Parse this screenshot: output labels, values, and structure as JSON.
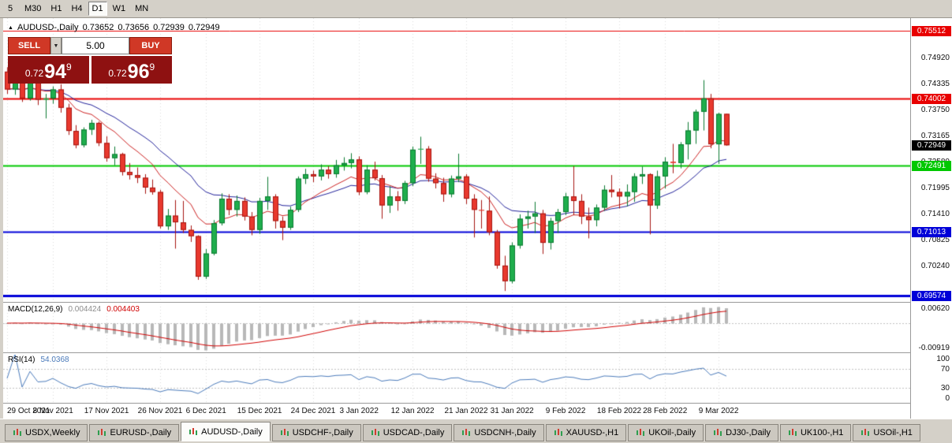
{
  "toolbar": {
    "timeframes": [
      {
        "label": "5",
        "active": false
      },
      {
        "label": "M30",
        "active": false
      },
      {
        "label": "H1",
        "active": false
      },
      {
        "label": "H4",
        "active": false
      },
      {
        "label": "D1",
        "active": true
      },
      {
        "label": "W1",
        "active": false
      },
      {
        "label": "MN",
        "active": false
      }
    ]
  },
  "chart_header": {
    "title": "AUDUSD-,Daily",
    "open": "0.73652",
    "high": "0.73656",
    "low": "0.72939",
    "close": "0.72949"
  },
  "one_click": {
    "sell_label": "SELL",
    "buy_label": "BUY",
    "volume": "5.00",
    "bid_prefix": "0.72",
    "bid_big": "94",
    "bid_sup": "9",
    "ask_prefix": "0.72",
    "ask_big": "96",
    "ask_sup": "9"
  },
  "chart_data": {
    "type": "candlestick",
    "symbol": "AUDUSD-",
    "timeframe": "Daily",
    "price_axis_range": {
      "min": 0.69435,
      "max": 0.758
    },
    "price_ticks": [
      {
        "label": "0.74920",
        "value": 0.7492
      },
      {
        "label": "0.74335",
        "value": 0.74335
      },
      {
        "label": "0.73750",
        "value": 0.7375
      },
      {
        "label": "0.73165",
        "value": 0.73165
      },
      {
        "label": "0.72580",
        "value": 0.7258
      },
      {
        "label": "0.71995",
        "value": 0.71995
      },
      {
        "label": "0.71410",
        "value": 0.7141
      },
      {
        "label": "0.70825",
        "value": 0.70825
      },
      {
        "label": "0.70240",
        "value": 0.7024
      }
    ],
    "horizontal_lines": [
      {
        "label": "0.75512",
        "price": 0.75512,
        "color": "#e80000",
        "width": 1
      },
      {
        "label": "0.74002",
        "price": 0.74002,
        "color": "#e80000",
        "width": 2
      },
      {
        "label": "0.72491",
        "price": 0.72491,
        "color": "#00c800",
        "width": 2
      },
      {
        "label": "0.71013",
        "price": 0.71013,
        "color": "#0000d8",
        "width": 2
      },
      {
        "label": "0.69574",
        "price": 0.69574,
        "color": "#0000d8",
        "width": 3
      }
    ],
    "current_price": {
      "label": "0.72949",
      "value": 0.72949,
      "color": "#000000"
    },
    "date_ticks": [
      {
        "index": 0,
        "label": "29 Oct 2021"
      },
      {
        "index": 6,
        "label": "8 Nov 2021"
      },
      {
        "index": 13,
        "label": "17 Nov 2021"
      },
      {
        "index": 20,
        "label": "26 Nov 2021"
      },
      {
        "index": 26,
        "label": "6 Dec 2021"
      },
      {
        "index": 33,
        "label": "15 Dec 2021"
      },
      {
        "index": 40,
        "label": "24 Dec 2021"
      },
      {
        "index": 46,
        "label": "3 Jan 2022"
      },
      {
        "index": 53,
        "label": "12 Jan 2022"
      },
      {
        "index": 60,
        "label": "21 Jan 2022"
      },
      {
        "index": 66,
        "label": "31 Jan 2022"
      },
      {
        "index": 73,
        "label": "9 Feb 2022"
      },
      {
        "index": 80,
        "label": "18 Feb 2022"
      },
      {
        "index": 86,
        "label": "28 Feb 2022"
      },
      {
        "index": 93,
        "label": "9 Mar 2022"
      }
    ],
    "moving_averages": [
      {
        "method": "ema",
        "period": 10,
        "color": "#cc2222"
      },
      {
        "method": "ema",
        "period": 20,
        "color": "#22229a"
      }
    ],
    "dates": [
      "2021-10-29",
      "2021-11-01",
      "2021-11-02",
      "2021-11-03",
      "2021-11-04",
      "2021-11-05",
      "2021-11-08",
      "2021-11-09",
      "2021-11-10",
      "2021-11-11",
      "2021-11-12",
      "2021-11-15",
      "2021-11-16",
      "2021-11-17",
      "2021-11-18",
      "2021-11-19",
      "2021-11-22",
      "2021-11-23",
      "2021-11-24",
      "2021-11-25",
      "2021-11-26",
      "2021-11-29",
      "2021-11-30",
      "2021-12-01",
      "2021-12-02",
      "2021-12-03",
      "2021-12-06",
      "2021-12-07",
      "2021-12-08",
      "2021-12-09",
      "2021-12-10",
      "2021-12-13",
      "2021-12-14",
      "2021-12-15",
      "2021-12-16",
      "2021-12-17",
      "2021-12-20",
      "2021-12-21",
      "2021-12-22",
      "2021-12-23",
      "2021-12-24",
      "2021-12-27",
      "2021-12-28",
      "2021-12-29",
      "2021-12-30",
      "2021-12-31",
      "2022-01-03",
      "2022-01-04",
      "2022-01-05",
      "2022-01-06",
      "2022-01-07",
      "2022-01-10",
      "2022-01-11",
      "2022-01-12",
      "2022-01-13",
      "2022-01-14",
      "2022-01-17",
      "2022-01-18",
      "2022-01-19",
      "2022-01-20",
      "2022-01-21",
      "2022-01-24",
      "2022-01-25",
      "2022-01-26",
      "2022-01-27",
      "2022-01-28",
      "2022-01-31",
      "2022-02-01",
      "2022-02-02",
      "2022-02-03",
      "2022-02-04",
      "2022-02-07",
      "2022-02-08",
      "2022-02-09",
      "2022-02-10",
      "2022-02-11",
      "2022-02-14",
      "2022-02-15",
      "2022-02-16",
      "2022-02-17",
      "2022-02-18",
      "2022-02-21",
      "2022-02-22",
      "2022-02-23",
      "2022-02-24",
      "2022-02-25",
      "2022-02-28",
      "2022-03-01",
      "2022-03-02",
      "2022-03-03",
      "2022-03-04",
      "2022-03-07",
      "2022-03-08",
      "2022-03-09",
      "2022-03-10"
    ],
    "ohlc": [
      [
        0.746,
        0.747,
        0.741,
        0.742
      ],
      [
        0.742,
        0.7445,
        0.7408,
        0.7438
      ],
      [
        0.7438,
        0.7448,
        0.7392,
        0.74
      ],
      [
        0.74,
        0.7462,
        0.7395,
        0.745
      ],
      [
        0.745,
        0.7455,
        0.7385,
        0.7397
      ],
      [
        0.7397,
        0.741,
        0.7355,
        0.74
      ],
      [
        0.74,
        0.7427,
        0.7388,
        0.742
      ],
      [
        0.742,
        0.7432,
        0.7368,
        0.7379
      ],
      [
        0.7379,
        0.7388,
        0.7318,
        0.7327
      ],
      [
        0.7327,
        0.734,
        0.7288,
        0.7295
      ],
      [
        0.7295,
        0.7335,
        0.729,
        0.733
      ],
      [
        0.733,
        0.7352,
        0.7318,
        0.7345
      ],
      [
        0.7345,
        0.7348,
        0.7293,
        0.73
      ],
      [
        0.73,
        0.7315,
        0.7258,
        0.7266
      ],
      [
        0.7266,
        0.7292,
        0.725,
        0.7275
      ],
      [
        0.7275,
        0.7278,
        0.7227,
        0.7235
      ],
      [
        0.7235,
        0.7255,
        0.7218,
        0.7228
      ],
      [
        0.7228,
        0.7245,
        0.721,
        0.7222
      ],
      [
        0.7222,
        0.723,
        0.7186,
        0.72
      ],
      [
        0.72,
        0.7218,
        0.7184,
        0.719
      ],
      [
        0.719,
        0.7195,
        0.7108,
        0.7113
      ],
      [
        0.7113,
        0.7152,
        0.7105,
        0.7137
      ],
      [
        0.7137,
        0.7172,
        0.7063,
        0.7122
      ],
      [
        0.7122,
        0.717,
        0.7098,
        0.7105
      ],
      [
        0.7105,
        0.7115,
        0.7078,
        0.7091
      ],
      [
        0.7091,
        0.7093,
        0.6993,
        0.7
      ],
      [
        0.7,
        0.7062,
        0.6995,
        0.7052
      ],
      [
        0.7052,
        0.7127,
        0.7048,
        0.712
      ],
      [
        0.712,
        0.7187,
        0.7115,
        0.7175
      ],
      [
        0.7175,
        0.7185,
        0.7138,
        0.715
      ],
      [
        0.715,
        0.7182,
        0.7135,
        0.717
      ],
      [
        0.717,
        0.7178,
        0.7126,
        0.7135
      ],
      [
        0.7135,
        0.7145,
        0.7093,
        0.7105
      ],
      [
        0.7105,
        0.7177,
        0.7096,
        0.717
      ],
      [
        0.717,
        0.7224,
        0.715,
        0.718
      ],
      [
        0.718,
        0.7185,
        0.7108,
        0.7125
      ],
      [
        0.7125,
        0.7135,
        0.7082,
        0.711
      ],
      [
        0.711,
        0.7157,
        0.7105,
        0.715
      ],
      [
        0.715,
        0.7225,
        0.7145,
        0.722
      ],
      [
        0.722,
        0.7242,
        0.7208,
        0.723
      ],
      [
        0.723,
        0.7238,
        0.7212,
        0.7225
      ],
      [
        0.7225,
        0.7252,
        0.7216,
        0.724
      ],
      [
        0.724,
        0.7248,
        0.722,
        0.723
      ],
      [
        0.723,
        0.7262,
        0.7222,
        0.725
      ],
      [
        0.725,
        0.7268,
        0.7238,
        0.7255
      ],
      [
        0.7255,
        0.7277,
        0.7243,
        0.7263
      ],
      [
        0.7263,
        0.727,
        0.7183,
        0.719
      ],
      [
        0.719,
        0.725,
        0.7185,
        0.724
      ],
      [
        0.724,
        0.7258,
        0.7216,
        0.7221
      ],
      [
        0.7221,
        0.7228,
        0.713,
        0.716
      ],
      [
        0.716,
        0.7203,
        0.7143,
        0.718
      ],
      [
        0.718,
        0.7192,
        0.7148,
        0.717
      ],
      [
        0.717,
        0.7215,
        0.7163,
        0.721
      ],
      [
        0.721,
        0.7292,
        0.7203,
        0.7285
      ],
      [
        0.7285,
        0.7314,
        0.7253,
        0.7287
      ],
      [
        0.7287,
        0.7293,
        0.7213,
        0.722
      ],
      [
        0.722,
        0.7232,
        0.7198,
        0.721
      ],
      [
        0.721,
        0.7222,
        0.7168,
        0.7185
      ],
      [
        0.7185,
        0.7227,
        0.7178,
        0.722
      ],
      [
        0.722,
        0.7276,
        0.7212,
        0.7225
      ],
      [
        0.7225,
        0.723,
        0.7163,
        0.7175
      ],
      [
        0.7175,
        0.7185,
        0.7088,
        0.715
      ],
      [
        0.715,
        0.7172,
        0.7108,
        0.7148
      ],
      [
        0.7148,
        0.718,
        0.7093,
        0.71
      ],
      [
        0.71,
        0.7105,
        0.7018,
        0.7025
      ],
      [
        0.7025,
        0.7047,
        0.6968,
        0.699
      ],
      [
        0.699,
        0.7077,
        0.6985,
        0.707
      ],
      [
        0.707,
        0.714,
        0.7063,
        0.713
      ],
      [
        0.713,
        0.7148,
        0.7108,
        0.7135
      ],
      [
        0.7135,
        0.7168,
        0.7098,
        0.7142
      ],
      [
        0.7142,
        0.715,
        0.7051,
        0.7076
      ],
      [
        0.7076,
        0.7132,
        0.7061,
        0.7125
      ],
      [
        0.7125,
        0.7152,
        0.7098,
        0.7145
      ],
      [
        0.7145,
        0.7188,
        0.7138,
        0.718
      ],
      [
        0.718,
        0.7248,
        0.7138,
        0.717
      ],
      [
        0.717,
        0.7185,
        0.7118,
        0.7135
      ],
      [
        0.7135,
        0.7155,
        0.7086,
        0.7127
      ],
      [
        0.7127,
        0.7162,
        0.7113,
        0.7155
      ],
      [
        0.7155,
        0.7205,
        0.7148,
        0.7195
      ],
      [
        0.7195,
        0.7228,
        0.7178,
        0.719
      ],
      [
        0.719,
        0.7198,
        0.7153,
        0.718
      ],
      [
        0.718,
        0.7207,
        0.7158,
        0.719
      ],
      [
        0.719,
        0.7232,
        0.7168,
        0.7225
      ],
      [
        0.7225,
        0.7247,
        0.7208,
        0.723
      ],
      [
        0.723,
        0.7232,
        0.7095,
        0.716
      ],
      [
        0.716,
        0.7238,
        0.7152,
        0.7225
      ],
      [
        0.7225,
        0.7268,
        0.7198,
        0.7258
      ],
      [
        0.7258,
        0.7298,
        0.7232,
        0.7255
      ],
      [
        0.7255,
        0.7302,
        0.7243,
        0.7297
      ],
      [
        0.7297,
        0.7347,
        0.7263,
        0.7328
      ],
      [
        0.7328,
        0.7375,
        0.7298,
        0.737
      ],
      [
        0.737,
        0.7441,
        0.7328,
        0.74
      ],
      [
        0.74,
        0.741,
        0.7288,
        0.7297
      ],
      [
        0.7297,
        0.7368,
        0.7253,
        0.7365
      ],
      [
        0.73652,
        0.73656,
        0.72939,
        0.72949
      ]
    ],
    "indicators": {
      "macd": {
        "label": "MACD(12,26,9)",
        "fast": 12,
        "slow": 26,
        "signal": 9,
        "value_main": "0.004424",
        "value_signal": "0.004403",
        "range": {
          "min": -0.00919,
          "max": 0.0062
        },
        "axis_labels": [
          {
            "label": "0.00620",
            "value": 0.0062
          },
          {
            "label": "-0.00919",
            "value": -0.00919
          }
        ]
      },
      "rsi": {
        "label": "RSI(14)",
        "period": 14,
        "value": "54.0368",
        "levels": [
          70,
          30
        ],
        "range": {
          "min": 0,
          "max": 100
        },
        "axis_labels": [
          {
            "label": "100",
            "value": 100
          },
          {
            "label": "70",
            "value": 70
          },
          {
            "label": "30",
            "value": 30
          },
          {
            "label": "0",
            "value": 0
          }
        ]
      }
    }
  },
  "bottom_tabs": [
    {
      "label": "USDX,Weekly",
      "active": false
    },
    {
      "label": "EURUSD-,Daily",
      "active": false
    },
    {
      "label": "AUDUSD-,Daily",
      "active": true
    },
    {
      "label": "USDCHF-,Daily",
      "active": false
    },
    {
      "label": "USDCAD-,Daily",
      "active": false
    },
    {
      "label": "USDCNH-,Daily",
      "active": false
    },
    {
      "label": "XAUUSD-,H1",
      "active": false
    },
    {
      "label": "UKOil-,Daily",
      "active": false
    },
    {
      "label": "DJ30-,Daily",
      "active": false
    },
    {
      "label": "UK100-,H1",
      "active": false
    },
    {
      "label": "USOil-,H1",
      "active": false
    }
  ],
  "colors": {
    "bull": "#1fae4d",
    "bull_border": "#0b7a30",
    "bear": "#e8392e",
    "bear_border": "#a61510",
    "grid": "#dcdcdc",
    "ma_fast": "#cc2222",
    "ma_slow": "#22229a",
    "macd_hist": "#b8b8b8",
    "macd_signal": "#d00000",
    "rsi_line": "#4a7aba",
    "current_badge": "#000000"
  }
}
